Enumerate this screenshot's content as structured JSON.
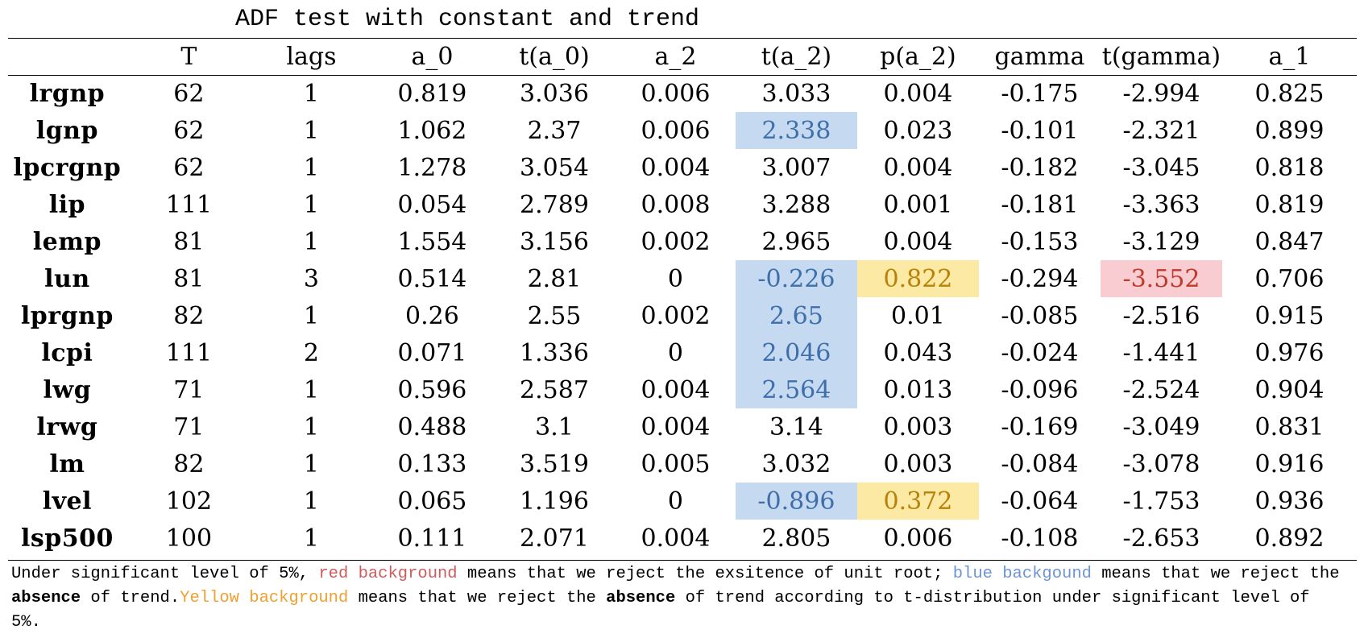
{
  "title": "ADF test with constant and trend",
  "columns": [
    "",
    "T",
    "lags",
    "a_0",
    "t(a_0)",
    "a_2",
    "t(a_2)",
    "p(a_2)",
    "gamma",
    "t(gamma)",
    "a_1"
  ],
  "rows": [
    {
      "name": "lrgnp",
      "T": "62",
      "lags": "1",
      "a_0": "0.819",
      "t_a_0": "3.036",
      "a_2": "0.006",
      "t_a_2": "3.033",
      "p_a_2": "0.004",
      "gamma": "-0.175",
      "t_gamma": "-2.994",
      "a_1": "0.825"
    },
    {
      "name": "lgnp",
      "T": "62",
      "lags": "1",
      "a_0": "1.062",
      "t_a_0": "2.37",
      "a_2": "0.006",
      "t_a_2": "2.338",
      "p_a_2": "0.023",
      "gamma": "-0.101",
      "t_gamma": "-2.321",
      "a_1": "0.899"
    },
    {
      "name": "lpcrgnp",
      "T": "62",
      "lags": "1",
      "a_0": "1.278",
      "t_a_0": "3.054",
      "a_2": "0.004",
      "t_a_2": "3.007",
      "p_a_2": "0.004",
      "gamma": "-0.182",
      "t_gamma": "-3.045",
      "a_1": "0.818"
    },
    {
      "name": "lip",
      "T": "111",
      "lags": "1",
      "a_0": "0.054",
      "t_a_0": "2.789",
      "a_2": "0.008",
      "t_a_2": "3.288",
      "p_a_2": "0.001",
      "gamma": "-0.181",
      "t_gamma": "-3.363",
      "a_1": "0.819"
    },
    {
      "name": "lemp",
      "T": "81",
      "lags": "1",
      "a_0": "1.554",
      "t_a_0": "3.156",
      "a_2": "0.002",
      "t_a_2": "2.965",
      "p_a_2": "0.004",
      "gamma": "-0.153",
      "t_gamma": "-3.129",
      "a_1": "0.847"
    },
    {
      "name": "lun",
      "T": "81",
      "lags": "3",
      "a_0": "0.514",
      "t_a_0": "2.81",
      "a_2": "0",
      "t_a_2": "-0.226",
      "p_a_2": "0.822",
      "gamma": "-0.294",
      "t_gamma": "-3.552",
      "a_1": "0.706"
    },
    {
      "name": "lprgnp",
      "T": "82",
      "lags": "1",
      "a_0": "0.26",
      "t_a_0": "2.55",
      "a_2": "0.002",
      "t_a_2": "2.65",
      "p_a_2": "0.01",
      "gamma": "-0.085",
      "t_gamma": "-2.516",
      "a_1": "0.915"
    },
    {
      "name": "lcpi",
      "T": "111",
      "lags": "2",
      "a_0": "0.071",
      "t_a_0": "1.336",
      "a_2": "0",
      "t_a_2": "2.046",
      "p_a_2": "0.043",
      "gamma": "-0.024",
      "t_gamma": "-1.441",
      "a_1": "0.976"
    },
    {
      "name": "lwg",
      "T": "71",
      "lags": "1",
      "a_0": "0.596",
      "t_a_0": "2.587",
      "a_2": "0.004",
      "t_a_2": "2.564",
      "p_a_2": "0.013",
      "gamma": "-0.096",
      "t_gamma": "-2.524",
      "a_1": "0.904"
    },
    {
      "name": "lrwg",
      "T": "71",
      "lags": "1",
      "a_0": "0.488",
      "t_a_0": "3.1",
      "a_2": "0.004",
      "t_a_2": "3.14",
      "p_a_2": "0.003",
      "gamma": "-0.169",
      "t_gamma": "-3.049",
      "a_1": "0.831"
    },
    {
      "name": "lm",
      "T": "82",
      "lags": "1",
      "a_0": "0.133",
      "t_a_0": "3.519",
      "a_2": "0.005",
      "t_a_2": "3.032",
      "p_a_2": "0.003",
      "gamma": "-0.084",
      "t_gamma": "-3.078",
      "a_1": "0.916"
    },
    {
      "name": "lvel",
      "T": "102",
      "lags": "1",
      "a_0": "0.065",
      "t_a_0": "1.196",
      "a_2": "0",
      "t_a_2": "-0.896",
      "p_a_2": "0.372",
      "gamma": "-0.064",
      "t_gamma": "-1.753",
      "a_1": "0.936"
    },
    {
      "name": "lsp500",
      "T": "100",
      "lags": "1",
      "a_0": "0.111",
      "t_a_0": "2.071",
      "a_2": "0.004",
      "t_a_2": "2.805",
      "p_a_2": "0.006",
      "gamma": "-0.108",
      "t_gamma": "-2.653",
      "a_1": "0.892"
    }
  ],
  "highlights": {
    "blue": [
      "lgnp.t_a_2",
      "lun.t_a_2",
      "lprgnp.t_a_2",
      "lcpi.t_a_2",
      "lwg.t_a_2",
      "lvel.t_a_2"
    ],
    "yellow": [
      "lun.p_a_2",
      "lvel.p_a_2"
    ],
    "red": [
      "lun.t_gamma"
    ]
  },
  "highlight_colors": {
    "blue": "#c5d9f1",
    "yellow": "#fce9a3",
    "red": "#f8ccd1"
  },
  "note": {
    "part1": "Under significant level of 5%, ",
    "red_label": "red background",
    "part2": " means that we reject the exsitence of unit root; ",
    "blue_label": "blue backgound",
    "part3": " means that we reject the ",
    "bold1": "absence",
    "part4": " of trend.",
    "yellow_label": "Yellow background",
    "part5": " means that we reject the ",
    "bold2": "absence",
    "part6": " of trend according to t-distribution under significant level of 5%."
  }
}
